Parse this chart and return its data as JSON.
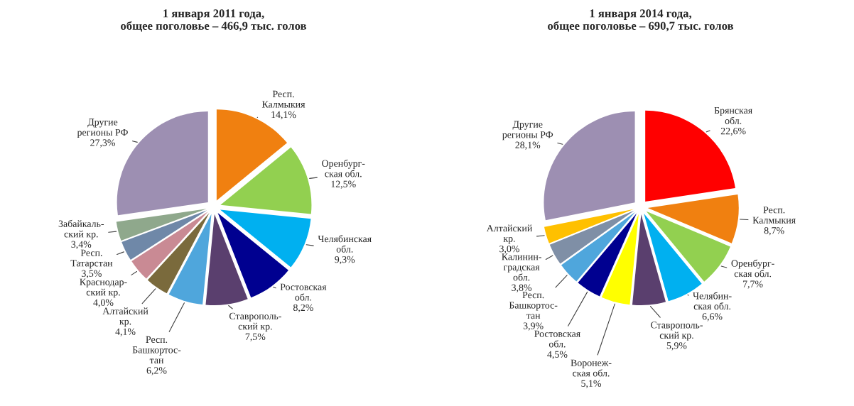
{
  "chart_data": [
    {
      "type": "pie",
      "title": "1 января 2011 года,\nобщее поголовье – 466,9 тыс. голов",
      "categories": [
        "Респ.\nКалмыкия",
        "Оренбург-\nская обл.",
        "Челябинская\nобл.",
        "Ростовская\nобл.",
        "Ставрополь-\nский кр.",
        "Респ.\nБашкортос-\nтан",
        "Алтайский\nкр.",
        "Краснодар-\nский кр.",
        "Респ.\nТатарстан",
        "Забайкаль-\nский кр.",
        "Другие\nрегионы РФ"
      ],
      "values": [
        14.1,
        12.5,
        9.3,
        8.2,
        7.5,
        6.2,
        4.1,
        4.0,
        3.5,
        3.4,
        27.3
      ],
      "value_labels": [
        "14,1%",
        "12,5%",
        "9,3%",
        "8,2%",
        "7,5%",
        "6,2%",
        "4,1%",
        "4,0%",
        "3,5%",
        "3,4%",
        "27,3%"
      ],
      "colors": [
        "#f08010",
        "#92d050",
        "#00b0f0",
        "#000090",
        "#5a3f6e",
        "#4fa6dc",
        "#7a6a3c",
        "#c98a94",
        "#6f88a8",
        "#8fa88c",
        "#9d8fb2"
      ]
    },
    {
      "type": "pie",
      "title": "1 января 2014 года,\nобщее поголовье – 690,7 тыс. голов",
      "categories": [
        "Брянская\nобл.",
        "Респ.\nКалмыкия",
        "Оренбург-\nская обл.",
        "Челябин-\nская обл.",
        "Ставрополь-\nский кр.",
        "Воронеж-\nская обл.",
        "Ростовская\nобл.",
        "Респ.\nБашкортос-\nтан",
        "Калинин-\nградская\nобл.",
        "Алтайский\nкр.",
        "Другие\nрегионы РФ"
      ],
      "values": [
        22.6,
        8.7,
        7.7,
        6.6,
        5.9,
        5.1,
        4.5,
        3.9,
        3.8,
        3.0,
        28.1
      ],
      "value_labels": [
        "22,6%",
        "8,7%",
        "7,7%",
        "6,6%",
        "5,9%",
        "5,1%",
        "4,5%",
        "3,9%",
        "3,8%",
        "3,0%",
        "28,1%"
      ],
      "colors": [
        "#ff0000",
        "#f08010",
        "#92d050",
        "#00b0f0",
        "#5a3f6e",
        "#ffff00",
        "#000090",
        "#4fa6dc",
        "#7f8fa6",
        "#ffc000",
        "#9d8fb2"
      ]
    }
  ]
}
